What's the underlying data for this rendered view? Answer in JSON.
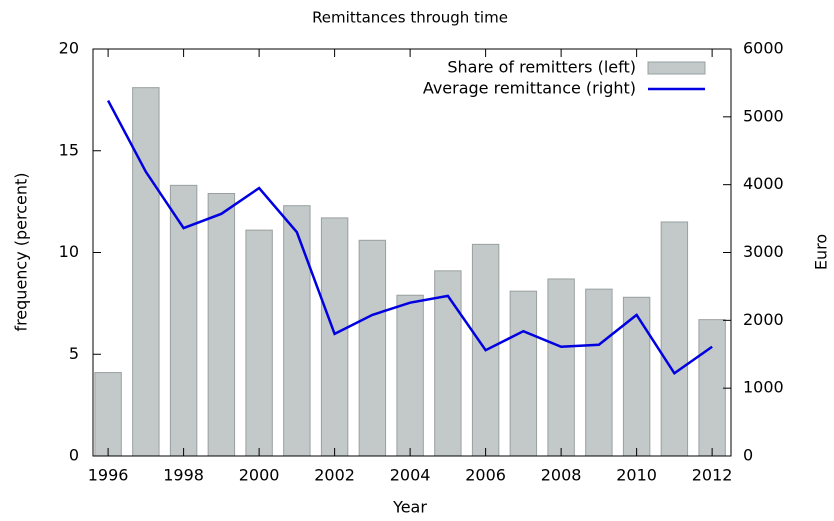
{
  "chart_data": {
    "type": "bar",
    "title": "Remittances through time",
    "xlabel": "Year",
    "ylabel": "frequency (percent)",
    "y2label": "Euro",
    "x": [
      1996,
      1997,
      1998,
      1999,
      2000,
      2001,
      2002,
      2003,
      2004,
      2005,
      2006,
      2007,
      2008,
      2009,
      2010,
      2011,
      2012
    ],
    "xlim": [
      1995.6,
      2012.5
    ],
    "xticks": [
      1996,
      1998,
      2000,
      2002,
      2004,
      2006,
      2008,
      2010,
      2012
    ],
    "ylim": [
      0,
      20
    ],
    "yticks": [
      0,
      5,
      10,
      15,
      20
    ],
    "y2lim": [
      0,
      6000
    ],
    "y2ticks": [
      0,
      1000,
      2000,
      3000,
      4000,
      5000,
      6000
    ],
    "legend": "top-right",
    "series": [
      {
        "name": "Share of remitters (left)",
        "type": "bar",
        "color": "#c3c8c8",
        "values": [
          4.1,
          18.1,
          13.3,
          12.9,
          11.1,
          12.3,
          11.7,
          10.6,
          7.9,
          9.1,
          10.4,
          8.1,
          8.7,
          8.2,
          7.8,
          11.5,
          6.7
        ]
      },
      {
        "name": "Average remittance (right)",
        "type": "line",
        "axis": "y2",
        "color": "#0000e0",
        "values": [
          5240,
          4190,
          3360,
          3570,
          3950,
          3300,
          1800,
          2080,
          2260,
          2360,
          1560,
          1840,
          1610,
          1640,
          2080,
          1220,
          1610
        ]
      }
    ]
  }
}
